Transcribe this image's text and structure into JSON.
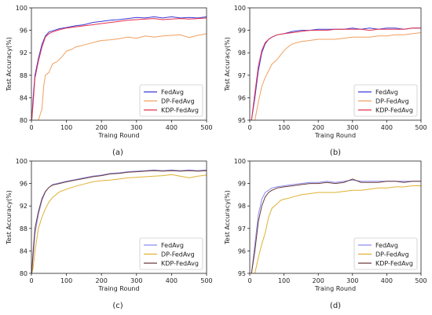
{
  "chart_data": [
    {
      "type": "line",
      "caption": "(a)",
      "xlabel": "Traing Round",
      "ylabel": "Test Accuracy(%)",
      "xlim": [
        0,
        500
      ],
      "ylim": [
        80,
        100
      ],
      "xticks": [
        0,
        100,
        200,
        300,
        400,
        500
      ],
      "yticks": [
        80,
        84,
        88,
        92,
        96,
        100
      ],
      "grid": false,
      "legend_position": "bottom-right",
      "series": [
        {
          "name": "FedAvg",
          "color": "#3a3ad6",
          "x": [
            1,
            5,
            10,
            20,
            30,
            40,
            50,
            60,
            80,
            100,
            125,
            150,
            175,
            200,
            225,
            250,
            275,
            300,
            325,
            350,
            375,
            400,
            425,
            450,
            475,
            500
          ],
          "values": [
            80,
            84,
            88,
            91,
            93.5,
            95,
            95.7,
            95.9,
            96.3,
            96.5,
            96.8,
            97.0,
            97.4,
            97.6,
            97.8,
            97.9,
            98.1,
            98.3,
            98.2,
            98.4,
            98.2,
            98.4,
            98.2,
            98.3,
            98.2,
            98.4
          ]
        },
        {
          "name": "DP-FedAvg",
          "color": "#f0a060",
          "x": [
            1,
            20,
            30,
            35,
            40,
            50,
            60,
            75,
            90,
            100,
            115,
            125,
            150,
            175,
            200,
            225,
            250,
            275,
            300,
            325,
            350,
            375,
            400,
            425,
            450,
            475,
            500
          ],
          "values": [
            80,
            80,
            82,
            86,
            88,
            88.5,
            90,
            90.5,
            91.5,
            92.3,
            92.6,
            93.0,
            93.4,
            93.8,
            94.2,
            94.3,
            94.5,
            94.8,
            94.6,
            95.0,
            94.8,
            95.0,
            95.1,
            95.2,
            94.7,
            95.1,
            95.4
          ]
        },
        {
          "name": "KDP-FedAvg",
          "color": "#e8304a",
          "x": [
            1,
            5,
            10,
            20,
            30,
            40,
            50,
            60,
            80,
            100,
            125,
            150,
            175,
            200,
            225,
            250,
            275,
            300,
            325,
            350,
            375,
            400,
            425,
            450,
            475,
            500
          ],
          "values": [
            80,
            83,
            87.5,
            90.5,
            93,
            94.8,
            95.4,
            95.7,
            96.1,
            96.4,
            96.6,
            96.8,
            97.0,
            97.2,
            97.4,
            97.6,
            97.8,
            97.9,
            98.0,
            98.1,
            97.9,
            98.0,
            98.1,
            98.0,
            98.1,
            98.2
          ]
        }
      ]
    },
    {
      "type": "line",
      "caption": "(b)",
      "xlabel": "Traing Round",
      "ylabel": "Test Accuracy(%)",
      "xlim": [
        0,
        500
      ],
      "ylim": [
        95,
        100
      ],
      "xticks": [
        0,
        100,
        200,
        300,
        400,
        500
      ],
      "yticks": [
        95,
        96,
        97,
        98,
        99,
        100
      ],
      "grid": false,
      "legend_position": "bottom-right",
      "series": [
        {
          "name": "FedAvg",
          "color": "#3a3ad6",
          "x": [
            5,
            15,
            25,
            35,
            45,
            55,
            65,
            80,
            100,
            125,
            150,
            175,
            200,
            225,
            250,
            275,
            300,
            325,
            350,
            375,
            400,
            425,
            450,
            475,
            500
          ],
          "values": [
            95,
            96.0,
            97.2,
            98.0,
            98.4,
            98.6,
            98.7,
            98.8,
            98.85,
            98.95,
            99.0,
            99.0,
            99.05,
            99.05,
            99.05,
            99.05,
            99.1,
            99.05,
            99.1,
            99.05,
            99.1,
            99.1,
            99.05,
            99.1,
            99.1
          ]
        },
        {
          "name": "DP-FedAvg",
          "color": "#f0a060",
          "x": [
            15,
            25,
            35,
            45,
            55,
            65,
            80,
            90,
            100,
            115,
            125,
            150,
            175,
            200,
            225,
            250,
            275,
            300,
            325,
            350,
            375,
            400,
            425,
            450,
            475,
            500
          ],
          "values": [
            95,
            95.8,
            96.5,
            96.9,
            97.2,
            97.5,
            97.7,
            97.9,
            98.1,
            98.3,
            98.4,
            98.5,
            98.55,
            98.6,
            98.6,
            98.6,
            98.65,
            98.7,
            98.7,
            98.7,
            98.75,
            98.75,
            98.8,
            98.8,
            98.85,
            98.9
          ]
        },
        {
          "name": "KDP-FedAvg",
          "color": "#e8304a",
          "x": [
            5,
            15,
            25,
            35,
            45,
            55,
            65,
            80,
            100,
            125,
            150,
            175,
            200,
            225,
            250,
            275,
            300,
            325,
            350,
            375,
            400,
            425,
            450,
            475,
            500
          ],
          "values": [
            95,
            96.2,
            97.4,
            98.1,
            98.45,
            98.6,
            98.7,
            98.8,
            98.85,
            98.9,
            98.95,
            99.0,
            99.0,
            99.0,
            99.05,
            99.05,
            99.05,
            99.05,
            99.0,
            99.05,
            99.05,
            99.05,
            99.05,
            99.1,
            99.1
          ]
        }
      ]
    },
    {
      "type": "line",
      "caption": "(c)",
      "xlabel": "Traing Round",
      "ylabel": "Test Accuracy(%)",
      "xlim": [
        0,
        500
      ],
      "ylim": [
        80,
        100
      ],
      "xticks": [
        0,
        100,
        200,
        300,
        400,
        500
      ],
      "yticks": [
        80,
        84,
        88,
        92,
        96,
        100
      ],
      "grid": false,
      "legend_position": "bottom-right",
      "series": [
        {
          "name": "FedAvg",
          "color": "#8c8cf0",
          "x": [
            1,
            5,
            10,
            20,
            30,
            40,
            50,
            60,
            80,
            100,
            125,
            150,
            175,
            200,
            225,
            250,
            275,
            300,
            325,
            350,
            375,
            400,
            425,
            450,
            475,
            500
          ],
          "values": [
            80,
            83,
            87,
            90.5,
            93,
            94.5,
            95.3,
            95.8,
            96.1,
            96.4,
            96.7,
            97.0,
            97.3,
            97.5,
            97.8,
            97.9,
            98.1,
            98.2,
            98.3,
            98.4,
            98.3,
            98.4,
            98.3,
            98.4,
            98.3,
            98.4
          ]
        },
        {
          "name": "DP-FedAvg",
          "color": "#e0b030",
          "x": [
            1,
            5,
            10,
            20,
            30,
            40,
            50,
            60,
            80,
            100,
            125,
            150,
            175,
            200,
            225,
            250,
            275,
            300,
            325,
            350,
            375,
            400,
            425,
            450,
            475,
            500
          ],
          "values": [
            80,
            81,
            84,
            88,
            90,
            91.5,
            92.7,
            93.5,
            94.5,
            95.0,
            95.5,
            95.9,
            96.3,
            96.5,
            96.6,
            96.8,
            97.0,
            97.1,
            97.2,
            97.3,
            97.4,
            97.6,
            97.3,
            97.0,
            97.3,
            97.5
          ]
        },
        {
          "name": "KDP-FedAvg",
          "color": "#6a3a3a",
          "x": [
            1,
            5,
            10,
            20,
            30,
            40,
            50,
            60,
            80,
            100,
            125,
            150,
            175,
            200,
            225,
            250,
            275,
            300,
            325,
            350,
            375,
            400,
            425,
            450,
            475,
            500
          ],
          "values": [
            80,
            84,
            88,
            91,
            93.3,
            94.6,
            95.3,
            95.7,
            96.0,
            96.3,
            96.6,
            96.9,
            97.2,
            97.4,
            97.7,
            97.8,
            98.0,
            98.1,
            98.2,
            98.3,
            98.2,
            98.3,
            98.2,
            98.3,
            98.2,
            98.3
          ]
        }
      ]
    },
    {
      "type": "line",
      "caption": "(d)",
      "xlabel": "Traing Round",
      "ylabel": "Test Accuracy(%)",
      "xlim": [
        0,
        500
      ],
      "ylim": [
        95,
        100
      ],
      "xticks": [
        0,
        100,
        200,
        300,
        400,
        500
      ],
      "yticks": [
        95,
        96,
        97,
        98,
        99,
        100
      ],
      "grid": false,
      "legend_position": "bottom-right",
      "series": [
        {
          "name": "FedAvg",
          "color": "#8c8cf0",
          "x": [
            5,
            15,
            25,
            35,
            45,
            55,
            65,
            80,
            100,
            125,
            150,
            175,
            200,
            225,
            250,
            275,
            300,
            325,
            350,
            375,
            400,
            425,
            450,
            475,
            500
          ],
          "values": [
            95,
            96.3,
            97.6,
            98.3,
            98.6,
            98.7,
            98.8,
            98.85,
            98.9,
            98.95,
            99.0,
            99.05,
            99.05,
            99.1,
            99.05,
            99.1,
            99.15,
            99.1,
            99.1,
            99.1,
            99.1,
            99.1,
            99.1,
            99.1,
            99.1
          ]
        },
        {
          "name": "DP-FedAvg",
          "color": "#e0b030",
          "x": [
            15,
            25,
            35,
            45,
            55,
            65,
            80,
            90,
            100,
            115,
            125,
            150,
            175,
            200,
            225,
            250,
            275,
            300,
            325,
            350,
            375,
            400,
            425,
            450,
            475,
            500
          ],
          "values": [
            95,
            95.7,
            96.3,
            96.8,
            97.5,
            97.9,
            98.1,
            98.25,
            98.3,
            98.35,
            98.4,
            98.5,
            98.55,
            98.6,
            98.6,
            98.6,
            98.65,
            98.7,
            98.7,
            98.75,
            98.8,
            98.8,
            98.85,
            98.85,
            98.9,
            98.9
          ]
        },
        {
          "name": "KDP-FedAvg",
          "color": "#6a3a3a",
          "x": [
            5,
            15,
            25,
            35,
            45,
            55,
            65,
            80,
            100,
            125,
            150,
            175,
            200,
            225,
            250,
            275,
            300,
            325,
            350,
            375,
            400,
            425,
            450,
            475,
            500
          ],
          "values": [
            95,
            96.0,
            97.3,
            98.0,
            98.4,
            98.6,
            98.7,
            98.8,
            98.85,
            98.9,
            98.95,
            99.0,
            99.0,
            99.05,
            99.0,
            99.05,
            99.2,
            99.05,
            99.05,
            99.05,
            99.1,
            99.1,
            99.05,
            99.1,
            99.1
          ]
        }
      ]
    }
  ]
}
